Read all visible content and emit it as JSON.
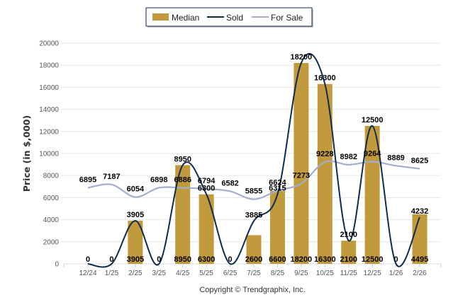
{
  "chart_data": {
    "type": "bar",
    "title": "",
    "xlabel": "",
    "ylabel": "Price (in $,000)",
    "ylim": [
      0,
      20000
    ],
    "yticks": [
      "0",
      "2000",
      "4000",
      "6000",
      "8000",
      "10000",
      "12000",
      "14000",
      "16000",
      "18000",
      "20000"
    ],
    "grid": true,
    "legend_position": "top-center",
    "categories": [
      "12/24",
      "1/25",
      "2/25",
      "3/25",
      "4/25",
      "5/25",
      "6/25",
      "7/25",
      "8/25",
      "9/25",
      "10/25",
      "11/25",
      "12/25",
      "1/26",
      "2/26"
    ],
    "series": [
      {
        "name": "Median",
        "type": "bar",
        "color": "#C29A3E",
        "values": [
          0,
          0,
          3905,
          0,
          8950,
          6300,
          0,
          2600,
          6600,
          18200,
          16300,
          2100,
          12500,
          0,
          4495
        ]
      },
      {
        "name": "Sold",
        "type": "line",
        "color": "#0E2A4E",
        "values": [
          0,
          0,
          3905,
          0,
          8950,
          6300,
          0,
          3885,
          6315,
          18200,
          16300,
          2100,
          12500,
          0,
          4232
        ]
      },
      {
        "name": "For Sale",
        "type": "line",
        "color": "#A4AECB",
        "values": [
          6895,
          7187,
          6054,
          6898,
          6886,
          6794,
          6582,
          5855,
          6624,
          7273,
          9228,
          8982,
          9264,
          8889,
          8625
        ]
      }
    ],
    "legend": [
      "Median",
      "Sold",
      "For Sale"
    ],
    "annotations": [
      "Copyright © Trendgraphix, Inc."
    ]
  },
  "footer": {
    "copyright": "Copyright © Trendgraphix, Inc."
  }
}
